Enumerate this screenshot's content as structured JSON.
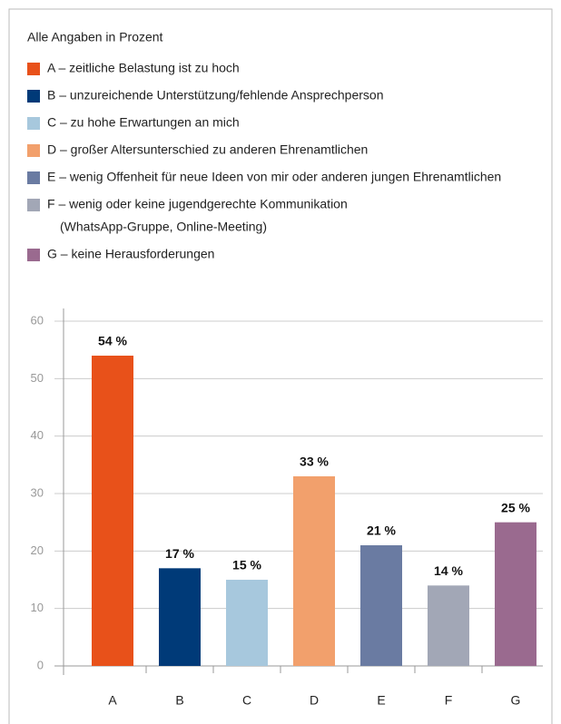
{
  "chart_data": {
    "type": "bar",
    "subtitle": "Alle Angaben in Prozent",
    "legend": [
      [
        "A – zeitliche Belastung ist zu hoch"
      ],
      [
        "B – unzureichende Unterstützung/fehlende Ansprechperson"
      ],
      [
        "C – zu hohe Erwartungen an mich"
      ],
      [
        "D – großer Altersunterschied zu anderen Ehrenamtlichen"
      ],
      [
        "E – wenig Offenheit für neue Ideen von mir oder anderen jungen Ehrenamtlichen"
      ],
      [
        "F – wenig oder keine jugendgerechte Kommunikation",
        "(WhatsApp-Gruppe, Online-Meeting)"
      ],
      [
        "G – keine Herausforderungen"
      ]
    ],
    "categories": [
      "A",
      "B",
      "C",
      "D",
      "E",
      "F",
      "G"
    ],
    "values": [
      54,
      17,
      15,
      33,
      21,
      14,
      25
    ],
    "value_labels": [
      "54 %",
      "17 %",
      "15 %",
      "33 %",
      "21 %",
      "14 %",
      "25 %"
    ],
    "colors": [
      "#e8511a",
      "#003a78",
      "#a7c8dd",
      "#f2a06c",
      "#6a7ba2",
      "#a2a7b6",
      "#9a6a8f"
    ],
    "ylim": [
      0,
      60
    ],
    "yticks": [
      0,
      10,
      20,
      30,
      40,
      50,
      60
    ],
    "grid": true
  }
}
